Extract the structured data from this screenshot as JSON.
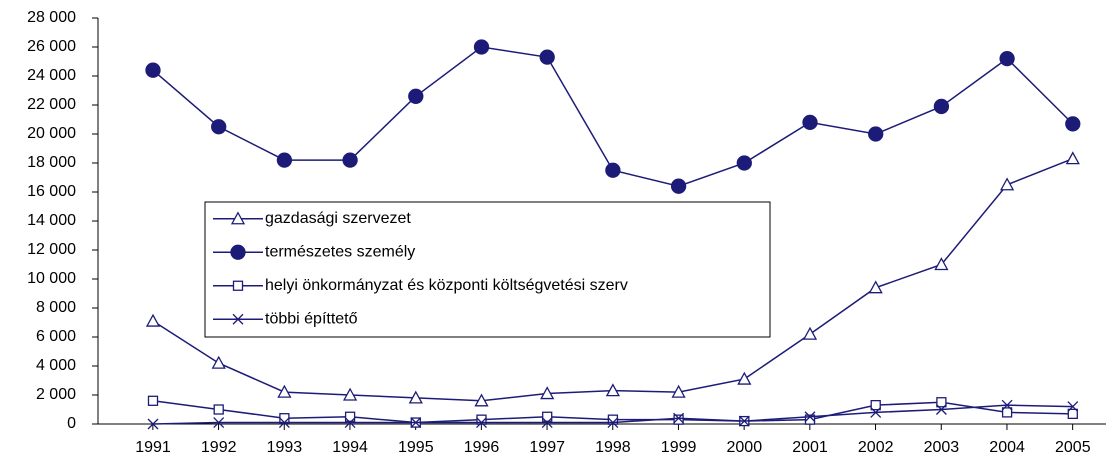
{
  "chart_data": {
    "type": "line",
    "categories": [
      "1991",
      "1992",
      "1993",
      "1994",
      "1995",
      "1996",
      "1997",
      "1998",
      "1999",
      "2000",
      "2001",
      "2002",
      "2003",
      "2004",
      "2005"
    ],
    "series": [
      {
        "name": "gazdasági szervezet",
        "color": "#1c1c78",
        "marker": "triangle",
        "values": [
          7100,
          4200,
          2200,
          2000,
          1800,
          1600,
          2100,
          2300,
          2200,
          3100,
          6200,
          9400,
          11000,
          16500,
          18300
        ]
      },
      {
        "name": "természetes személy",
        "color": "#1c1c78",
        "marker": "circle",
        "values": [
          24400,
          20500,
          18200,
          18200,
          22600,
          26000,
          25300,
          17500,
          16400,
          18000,
          20800,
          20000,
          21900,
          25200,
          20700
        ]
      },
      {
        "name": "helyi önkormányzat és központi költségvetési szerv",
        "color": "#1c1c78",
        "marker": "square",
        "values": [
          1600,
          1000,
          400,
          500,
          100,
          300,
          500,
          300,
          300,
          200,
          300,
          1300,
          1500,
          800,
          700
        ]
      },
      {
        "name": "többi építtető",
        "color": "#1c1c78",
        "marker": "x",
        "values": [
          0,
          100,
          100,
          100,
          100,
          100,
          100,
          100,
          400,
          200,
          500,
          800,
          1000,
          1300,
          1200
        ]
      }
    ],
    "ylim": [
      0,
      28000
    ],
    "yticks": [
      0,
      {
        "value": 2000,
        "label": "2 000"
      },
      {
        "value": 4000,
        "label": "4 000"
      },
      {
        "value": 6000,
        "label": "6 000"
      },
      {
        "value": 8000,
        "label": "8 000"
      },
      {
        "value": 10000,
        "label": "10 000"
      },
      {
        "value": 12000,
        "label": "12 000"
      },
      {
        "value": 14000,
        "label": "14 000"
      },
      {
        "value": 16000,
        "label": "16 000"
      },
      {
        "value": 18000,
        "label": "18 000"
      },
      {
        "value": 20000,
        "label": "20 000"
      },
      {
        "value": 22000,
        "label": "22 000"
      },
      {
        "value": 24000,
        "label": "24 000"
      },
      {
        "value": 26000,
        "label": "26 000"
      },
      {
        "value": 28000,
        "label": "28 000"
      }
    ],
    "grid": false
  }
}
